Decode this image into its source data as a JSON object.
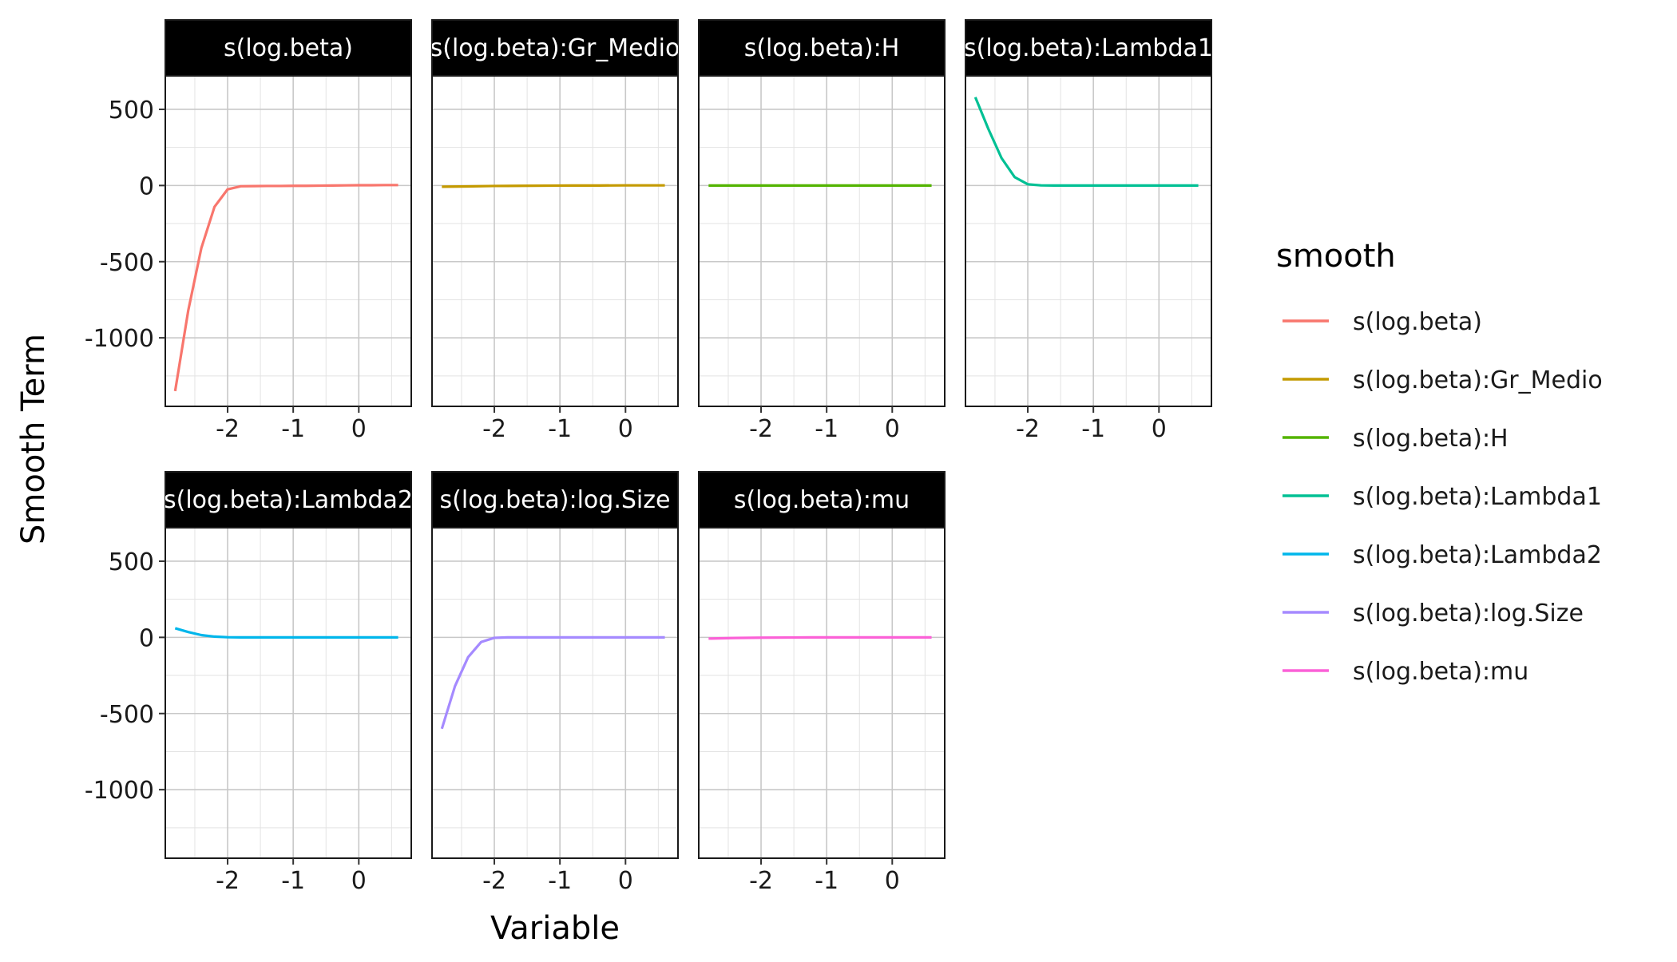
{
  "chart_data": {
    "type": "line",
    "facet_layout": "wrap",
    "xlabel": "Variable",
    "ylabel": "Smooth Term",
    "x_ticks": [
      -2,
      -1,
      0
    ],
    "y_ticks": [
      500,
      0,
      -500,
      -1000
    ],
    "xlim": [
      -2.95,
      0.8
    ],
    "ylim": [
      -1450,
      720
    ],
    "grid": true,
    "legend": {
      "title": "smooth",
      "position": "right"
    },
    "series": [
      {
        "name": "s(log.beta)",
        "strip": "s(log.beta)",
        "color": "#F8766D",
        "x": [
          -2.8,
          -2.6,
          -2.4,
          -2.2,
          -2.0,
          -1.8,
          -1.6,
          -1.4,
          -1.2,
          -1.0,
          -0.8,
          -0.6,
          -0.4,
          -0.2,
          0.0,
          0.2,
          0.4,
          0.6
        ],
        "y": [
          -1350,
          -820,
          -410,
          -140,
          -25,
          -5,
          -4,
          -3,
          -3,
          -2,
          -2,
          -1,
          0,
          1,
          2,
          2,
          3,
          3
        ]
      },
      {
        "name": "s(log.beta):Gr_Medio",
        "strip": "s(log.beta):Gr_Medio",
        "color": "#C49A00",
        "x": [
          -2.8,
          -2.4,
          -2.0,
          -1.6,
          -1.2,
          -0.8,
          -0.4,
          0.0,
          0.4,
          0.6
        ],
        "y": [
          -8,
          -6,
          -3,
          -2,
          -1,
          0,
          0,
          1,
          1,
          1
        ]
      },
      {
        "name": "s(log.beta):H",
        "strip": "s(log.beta):H",
        "color": "#53B400",
        "x": [
          -2.8,
          -2.4,
          -2.0,
          -1.6,
          -1.2,
          -0.8,
          -0.4,
          0.0,
          0.4,
          0.6
        ],
        "y": [
          0,
          0,
          0,
          0,
          0,
          0,
          0,
          0,
          0,
          0
        ]
      },
      {
        "name": "s(log.beta):Lambda1",
        "strip": "s(log.beta):Lambda1",
        "color": "#00C094",
        "x": [
          -2.8,
          -2.6,
          -2.4,
          -2.2,
          -2.0,
          -1.8,
          -1.6,
          -1.2,
          -0.8,
          -0.4,
          0.0,
          0.4,
          0.6
        ],
        "y": [
          580,
          370,
          180,
          55,
          8,
          1,
          0,
          0,
          0,
          0,
          0,
          0,
          0
        ]
      },
      {
        "name": "s(log.beta):Lambda2",
        "strip": "s(log.beta):Lambda2",
        "color": "#00B6EB",
        "x": [
          -2.8,
          -2.6,
          -2.4,
          -2.2,
          -2.0,
          -1.8,
          -1.6,
          -1.2,
          -0.8,
          -0.4,
          0.0,
          0.4,
          0.6
        ],
        "y": [
          60,
          35,
          15,
          5,
          1,
          0,
          0,
          0,
          0,
          0,
          0,
          0,
          0
        ]
      },
      {
        "name": "s(log.beta):log.Size",
        "strip": "s(log.beta):log.Size",
        "color": "#A58AFF",
        "x": [
          -2.8,
          -2.6,
          -2.4,
          -2.2,
          -2.0,
          -1.8,
          -1.6,
          -1.2,
          -0.8,
          -0.4,
          0.0,
          0.4,
          0.6
        ],
        "y": [
          -600,
          -320,
          -130,
          -30,
          -3,
          0,
          0,
          0,
          0,
          0,
          0,
          0,
          0
        ]
      },
      {
        "name": "s(log.beta):mu",
        "strip": "s(log.beta):mu",
        "color": "#FB61D7",
        "x": [
          -2.8,
          -2.4,
          -2.0,
          -1.6,
          -1.2,
          -0.8,
          -0.4,
          0.0,
          0.4,
          0.6
        ],
        "y": [
          -8,
          -4,
          -2,
          -1,
          0,
          0,
          0,
          0,
          0,
          0
        ]
      }
    ]
  }
}
